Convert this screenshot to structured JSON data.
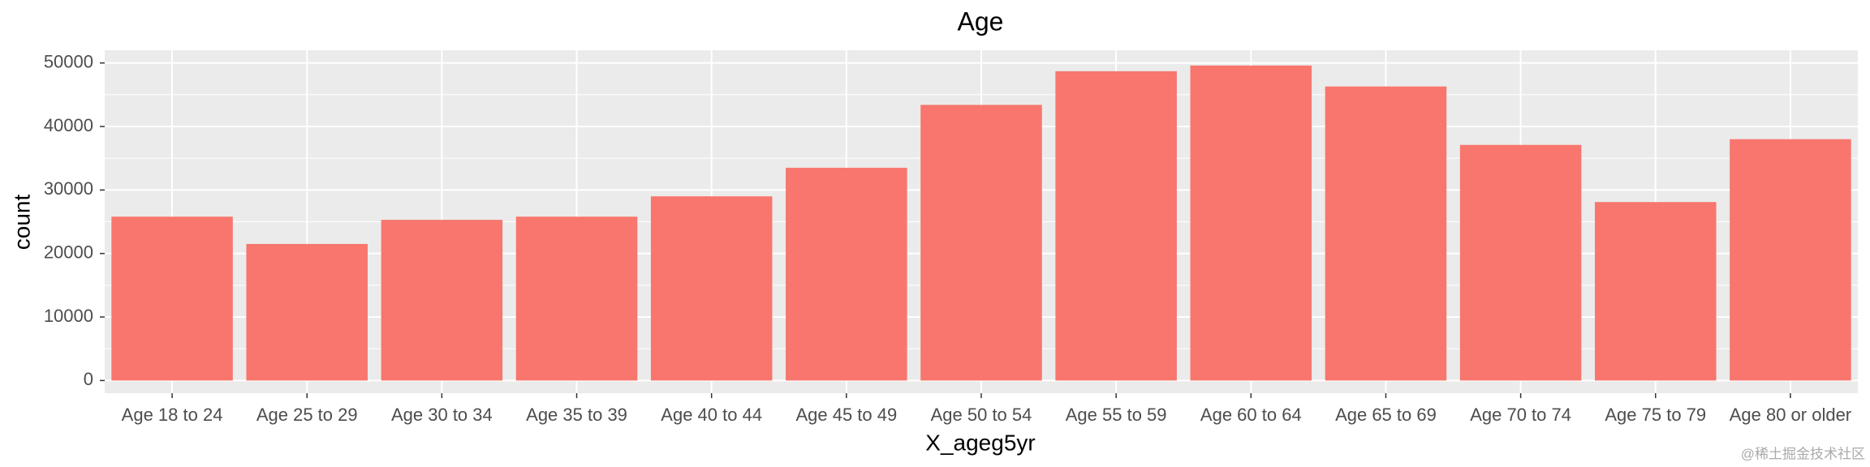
{
  "chart_data": {
    "type": "bar",
    "title": "Age",
    "x_label": "X_ageg5yr",
    "y_label": "count",
    "categories": [
      "Age 18 to 24",
      "Age 25 to 29",
      "Age 30 to 34",
      "Age 35 to 39",
      "Age 40 to 44",
      "Age 45 to 49",
      "Age 50 to 54",
      "Age 55 to 59",
      "Age 60 to 64",
      "Age 65 to 69",
      "Age 70 to 74",
      "Age 75 to 79",
      "Age 80 or older"
    ],
    "values": [
      25800,
      21500,
      25300,
      25800,
      29000,
      33500,
      43400,
      48700,
      49600,
      46300,
      37100,
      28100,
      38000
    ],
    "color": "#f8766d",
    "ylim": [
      -2000,
      52000
    ],
    "yticks": [
      0,
      10000,
      20000,
      30000,
      40000,
      50000
    ],
    "grid": true,
    "watermark": "@稀土掘金技术社区"
  }
}
